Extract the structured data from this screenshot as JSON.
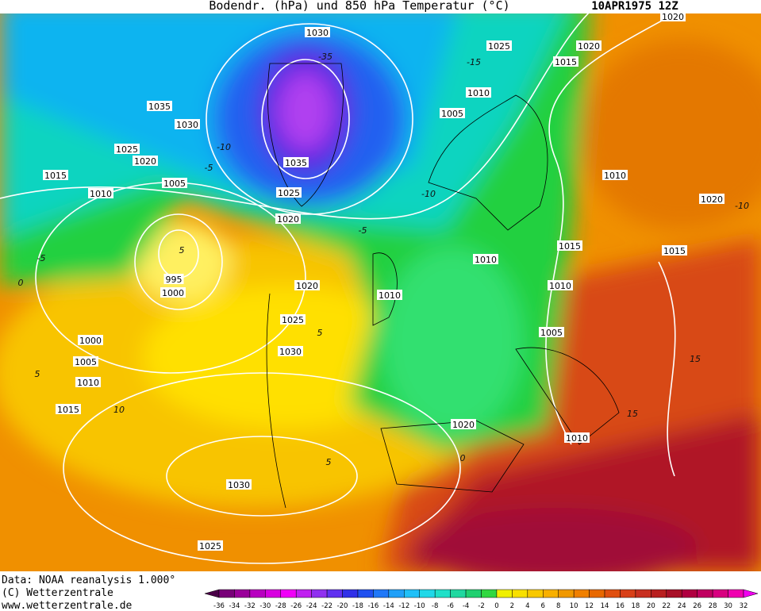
{
  "header": {
    "title": "Bodendr. (hPa)  und 850 hPa Temperatur (°C)",
    "valid_time": "10APR1975 12Z"
  },
  "footer": {
    "lines": [
      "Data: NOAA reanalysis 1.000°",
      "(C) Wetterzentrale",
      "www.wetterzentrale.de"
    ]
  },
  "map": {
    "isobar_labels": [
      1030,
      1025,
      1020,
      1015,
      1020,
      1010,
      1005,
      1035,
      1030,
      1025,
      1020,
      1015,
      1010,
      1005,
      1035,
      1025,
      1020,
      1010,
      1020,
      1015,
      1015,
      1010,
      1010,
      1010,
      1020,
      995,
      1000,
      1025,
      1030,
      1005,
      1000,
      1005,
      1010,
      1015,
      1020,
      1010,
      1030,
      1025
    ],
    "temperature_labels": [
      -35,
      -15,
      -10,
      -5,
      -10,
      -5,
      -5,
      0,
      5,
      5,
      5,
      10,
      5,
      0,
      -10,
      15,
      15
    ]
  },
  "colorbar": {
    "labels": [
      -36,
      -34,
      -32,
      -30,
      -28,
      -26,
      -24,
      -22,
      -20,
      -18,
      -16,
      -14,
      -12,
      -10,
      -8,
      -6,
      -4,
      -2,
      0,
      2,
      4,
      6,
      8,
      10,
      12,
      14,
      16,
      18,
      20,
      22,
      24,
      26,
      28,
      30,
      32
    ],
    "colors": [
      "#4a0048",
      "#780078",
      "#9a009a",
      "#b800c0",
      "#d800e0",
      "#f000f8",
      "#c020f0",
      "#9030f0",
      "#6030f0",
      "#3030e8",
      "#2050f0",
      "#2078f8",
      "#20a0f8",
      "#20c0f8",
      "#20d8e8",
      "#20e0c8",
      "#20d8a0",
      "#20d070",
      "#30d840",
      "#f0f000",
      "#f8e000",
      "#f8c800",
      "#f8b000",
      "#f09800",
      "#f08000",
      "#e86800",
      "#e05010",
      "#d84018",
      "#c83020",
      "#b82020",
      "#a81028",
      "#b00040",
      "#c00060",
      "#d80080",
      "#f000b0",
      "#f000f0"
    ]
  }
}
